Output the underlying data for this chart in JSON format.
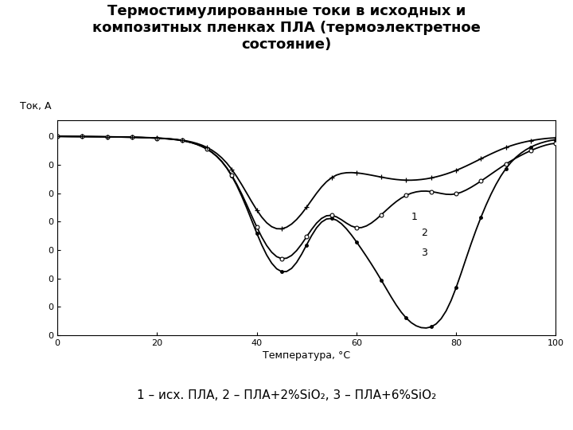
{
  "title": "Термостимулированные токи в исходных и\nкомпозитных пленках ПЛА (термоэлектретное\nсостояние)",
  "xlabel": "Температура, °C",
  "ylabel": "Ток, А",
  "caption": "1 – исх. ПЛА, 2 – ПЛА+2%SiO₂, 3 – ПЛА+6%SiO₂",
  "xlim": [
    0,
    100
  ],
  "ylim": [
    -1.0,
    0.08
  ],
  "bg_color": "#ffffff",
  "plot_bg_color": "#ffffff",
  "curve1_color": "#000000",
  "curve2_color": "#000000",
  "curve3_color": "#000000",
  "label1": "1",
  "label2": "2",
  "label3": "3",
  "curve1_x": [
    0,
    1,
    2,
    3,
    4,
    5,
    6,
    7,
    8,
    9,
    10,
    11,
    12,
    13,
    14,
    15,
    16,
    17,
    18,
    19,
    20,
    21,
    22,
    23,
    24,
    25,
    26,
    27,
    28,
    29,
    30,
    31,
    32,
    33,
    34,
    35,
    36,
    37,
    38,
    39,
    40,
    41,
    42,
    43,
    44,
    45,
    46,
    47,
    48,
    49,
    50,
    51,
    52,
    53,
    54,
    55,
    56,
    57,
    58,
    59,
    60,
    61,
    62,
    63,
    64,
    65,
    66,
    67,
    68,
    69,
    70,
    71,
    72,
    73,
    74,
    75,
    76,
    77,
    78,
    79,
    80,
    81,
    82,
    83,
    84,
    85,
    86,
    87,
    88,
    89,
    90,
    91,
    92,
    93,
    94,
    95,
    96,
    97,
    98,
    99,
    100
  ],
  "curve1_y": [
    0.0,
    0.0,
    -0.001,
    -0.001,
    -0.001,
    -0.001,
    -0.001,
    -0.002,
    -0.002,
    -0.002,
    -0.002,
    -0.003,
    -0.003,
    -0.004,
    -0.004,
    -0.005,
    -0.005,
    -0.006,
    -0.007,
    -0.008,
    -0.009,
    -0.01,
    -0.012,
    -0.014,
    -0.016,
    -0.02,
    -0.025,
    -0.03,
    -0.038,
    -0.048,
    -0.06,
    -0.075,
    -0.095,
    -0.12,
    -0.15,
    -0.19,
    -0.24,
    -0.295,
    -0.355,
    -0.42,
    -0.49,
    -0.555,
    -0.61,
    -0.65,
    -0.68,
    -0.7,
    -0.695,
    -0.68,
    -0.65,
    -0.6,
    -0.545,
    -0.49,
    -0.445,
    -0.415,
    -0.4,
    -0.4,
    -0.41,
    -0.43,
    -0.46,
    -0.49,
    -0.53,
    -0.565,
    -0.6,
    -0.64,
    -0.68,
    -0.72,
    -0.765,
    -0.81,
    -0.855,
    -0.89,
    -0.92,
    -0.945,
    -0.96,
    -0.968,
    -0.97,
    -0.968,
    -0.955,
    -0.93,
    -0.895,
    -0.84,
    -0.77,
    -0.69,
    -0.61,
    -0.535,
    -0.465,
    -0.4,
    -0.34,
    -0.285,
    -0.235,
    -0.19,
    -0.155,
    -0.125,
    -0.1,
    -0.08,
    -0.065,
    -0.05,
    -0.04,
    -0.032,
    -0.025,
    -0.018,
    -0.013
  ],
  "curve2_x": [
    0,
    1,
    2,
    3,
    4,
    5,
    6,
    7,
    8,
    9,
    10,
    11,
    12,
    13,
    14,
    15,
    16,
    17,
    18,
    19,
    20,
    21,
    22,
    23,
    24,
    25,
    26,
    27,
    28,
    29,
    30,
    31,
    32,
    33,
    34,
    35,
    36,
    37,
    38,
    39,
    40,
    41,
    42,
    43,
    44,
    45,
    46,
    47,
    48,
    49,
    50,
    51,
    52,
    53,
    54,
    55,
    56,
    57,
    58,
    59,
    60,
    61,
    62,
    63,
    64,
    65,
    66,
    67,
    68,
    69,
    70,
    71,
    72,
    73,
    74,
    75,
    76,
    77,
    78,
    79,
    80,
    81,
    82,
    83,
    84,
    85,
    86,
    87,
    88,
    89,
    90,
    91,
    92,
    93,
    94,
    95,
    96,
    97,
    98,
    99,
    100
  ],
  "curve2_y": [
    0.0,
    0.0,
    -0.001,
    -0.001,
    -0.001,
    -0.001,
    -0.001,
    -0.002,
    -0.002,
    -0.002,
    -0.002,
    -0.003,
    -0.003,
    -0.004,
    -0.004,
    -0.005,
    -0.005,
    -0.006,
    -0.007,
    -0.008,
    -0.009,
    -0.01,
    -0.012,
    -0.014,
    -0.016,
    -0.02,
    -0.025,
    -0.03,
    -0.038,
    -0.048,
    -0.06,
    -0.075,
    -0.095,
    -0.12,
    -0.15,
    -0.188,
    -0.235,
    -0.285,
    -0.34,
    -0.4,
    -0.46,
    -0.515,
    -0.56,
    -0.595,
    -0.618,
    -0.63,
    -0.625,
    -0.61,
    -0.585,
    -0.548,
    -0.505,
    -0.462,
    -0.425,
    -0.4,
    -0.385,
    -0.385,
    -0.395,
    -0.415,
    -0.44,
    -0.46,
    -0.47,
    -0.468,
    -0.458,
    -0.44,
    -0.42,
    -0.395,
    -0.37,
    -0.345,
    -0.325,
    -0.305,
    -0.292,
    -0.282,
    -0.275,
    -0.272,
    -0.272,
    -0.275,
    -0.28,
    -0.288,
    -0.295,
    -0.298,
    -0.295,
    -0.285,
    -0.272,
    -0.258,
    -0.242,
    -0.225,
    -0.208,
    -0.19,
    -0.172,
    -0.155,
    -0.138,
    -0.122,
    -0.108,
    -0.095,
    -0.082,
    -0.07,
    -0.06,
    -0.05,
    -0.042,
    -0.036,
    -0.03
  ],
  "curve3_x": [
    0,
    1,
    2,
    3,
    4,
    5,
    6,
    7,
    8,
    9,
    10,
    11,
    12,
    13,
    14,
    15,
    16,
    17,
    18,
    19,
    20,
    21,
    22,
    23,
    24,
    25,
    26,
    27,
    28,
    29,
    30,
    31,
    32,
    33,
    34,
    35,
    36,
    37,
    38,
    39,
    40,
    41,
    42,
    43,
    44,
    45,
    46,
    47,
    48,
    49,
    50,
    51,
    52,
    53,
    54,
    55,
    56,
    57,
    58,
    59,
    60,
    61,
    62,
    63,
    64,
    65,
    66,
    67,
    68,
    69,
    70,
    71,
    72,
    73,
    74,
    75,
    76,
    77,
    78,
    79,
    80,
    81,
    82,
    83,
    84,
    85,
    86,
    87,
    88,
    89,
    90,
    91,
    92,
    93,
    94,
    95,
    96,
    97,
    98,
    99,
    100
  ],
  "curve3_y": [
    0.0,
    0.0,
    -0.001,
    -0.001,
    -0.001,
    -0.001,
    -0.001,
    -0.001,
    -0.002,
    -0.002,
    -0.002,
    -0.002,
    -0.003,
    -0.003,
    -0.003,
    -0.004,
    -0.004,
    -0.005,
    -0.006,
    -0.007,
    -0.008,
    -0.009,
    -0.011,
    -0.013,
    -0.015,
    -0.018,
    -0.022,
    -0.027,
    -0.034,
    -0.042,
    -0.052,
    -0.065,
    -0.082,
    -0.103,
    -0.128,
    -0.16,
    -0.198,
    -0.24,
    -0.285,
    -0.33,
    -0.375,
    -0.415,
    -0.445,
    -0.465,
    -0.475,
    -0.475,
    -0.465,
    -0.448,
    -0.425,
    -0.395,
    -0.36,
    -0.32,
    -0.282,
    -0.248,
    -0.22,
    -0.2,
    -0.188,
    -0.182,
    -0.18,
    -0.18,
    -0.182,
    -0.185,
    -0.19,
    -0.195,
    -0.2,
    -0.205,
    -0.21,
    -0.215,
    -0.218,
    -0.22,
    -0.222,
    -0.222,
    -0.22,
    -0.218,
    -0.215,
    -0.21,
    -0.205,
    -0.198,
    -0.19,
    -0.182,
    -0.172,
    -0.162,
    -0.15,
    -0.138,
    -0.125,
    -0.112,
    -0.1,
    -0.088,
    -0.076,
    -0.065,
    -0.055,
    -0.046,
    -0.038,
    -0.032,
    -0.026,
    -0.021,
    -0.017,
    -0.013,
    -0.01,
    -0.008,
    -0.006
  ]
}
